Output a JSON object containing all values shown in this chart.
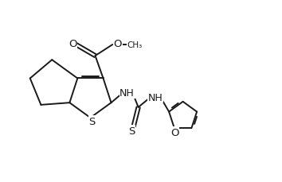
{
  "bg_color": "#ffffff",
  "line_color": "#1a1a1a",
  "lw": 1.4,
  "figsize": [
    3.54,
    2.3
  ],
  "dpi": 100,
  "xlim": [
    0.0,
    10.5
  ],
  "ylim": [
    1.0,
    7.5
  ]
}
